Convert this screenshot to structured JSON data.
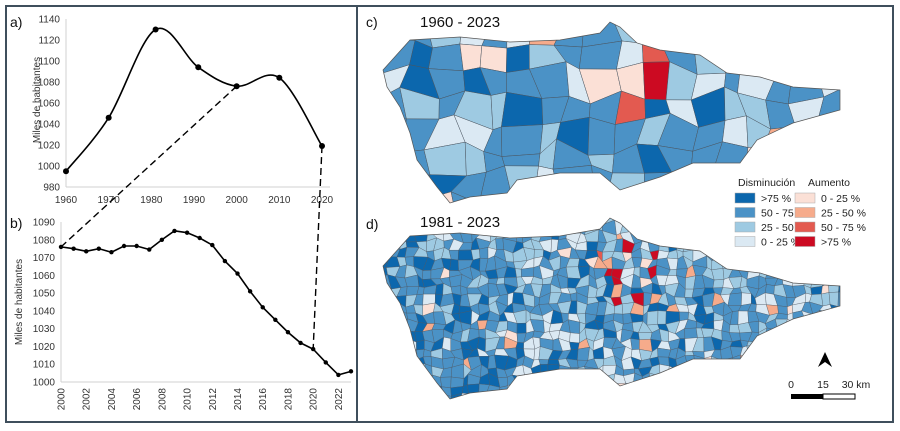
{
  "panels": {
    "a": "a)",
    "b": "b)",
    "c": "c)",
    "d": "d)"
  },
  "chart_data": [
    {
      "type": "line",
      "panel": "a)",
      "smooth": true,
      "ylabel": "Miles de habitantes",
      "xlabel": "",
      "xticks": [
        1960,
        1970,
        1980,
        1990,
        2000,
        2010,
        2020
      ],
      "yticks": [
        980,
        1000,
        1020,
        1040,
        1060,
        1080,
        1100,
        1120,
        1140
      ],
      "xlim": [
        1960,
        2020
      ],
      "ylim": [
        980,
        1140
      ],
      "x": [
        1960,
        1970,
        1981,
        1991,
        2000,
        2010,
        2020
      ],
      "y": [
        995,
        1046,
        1130,
        1094,
        1076,
        1084,
        1019
      ],
      "grid": false
    },
    {
      "type": "line",
      "panel": "b)",
      "ylabel": "Miles de habitantes",
      "xlabel": "",
      "xticks": [
        2000,
        2002,
        2004,
        2006,
        2008,
        2010,
        2012,
        2014,
        2016,
        2018,
        2020,
        2022
      ],
      "yticks": [
        1000,
        1010,
        1020,
        1030,
        1040,
        1050,
        1060,
        1070,
        1080,
        1090
      ],
      "xlim": [
        2000,
        2023
      ],
      "ylim": [
        1000,
        1090
      ],
      "x": [
        2000,
        2001,
        2002,
        2003,
        2004,
        2005,
        2006,
        2007,
        2008,
        2009,
        2010,
        2011,
        2012,
        2013,
        2014,
        2015,
        2016,
        2017,
        2018,
        2019,
        2020,
        2021,
        2022,
        2023
      ],
      "y": [
        1076,
        1075,
        1073.5,
        1075,
        1073,
        1076.5,
        1076.5,
        1074.5,
        1080,
        1085,
        1084,
        1081,
        1077,
        1068,
        1061,
        1051,
        1042,
        1035,
        1028,
        1022,
        1018.5,
        1011,
        1004,
        1006
      ],
      "grid": false
    }
  ],
  "maps": {
    "c_title": "1960 - 2023",
    "d_title": "1981 - 2023"
  },
  "legend": {
    "decrease_title": "Disminución",
    "increase_title": "Aumento",
    "decrease": [
      {
        "label": ">75 %",
        "color": "#0c67ad"
      },
      {
        "label": "50 - 75 %",
        "color": "#4b92c6"
      },
      {
        "label": "25 - 50 %",
        "color": "#9ecae2"
      },
      {
        "label": "0 - 25 %",
        "color": "#dbe9f3"
      }
    ],
    "increase": [
      {
        "label": "0 - 25 %",
        "color": "#fbe0d6"
      },
      {
        "label": "25 - 50 %",
        "color": "#f6ab8b"
      },
      {
        "label": "50 - 75 %",
        "color": "#e35a50"
      },
      {
        "label": ">75 %",
        "color": "#cc0a22"
      }
    ]
  },
  "scale_bar": {
    "labels": [
      "0",
      "15",
      "30 km"
    ]
  },
  "north_arrow": "north-arrow-icon"
}
